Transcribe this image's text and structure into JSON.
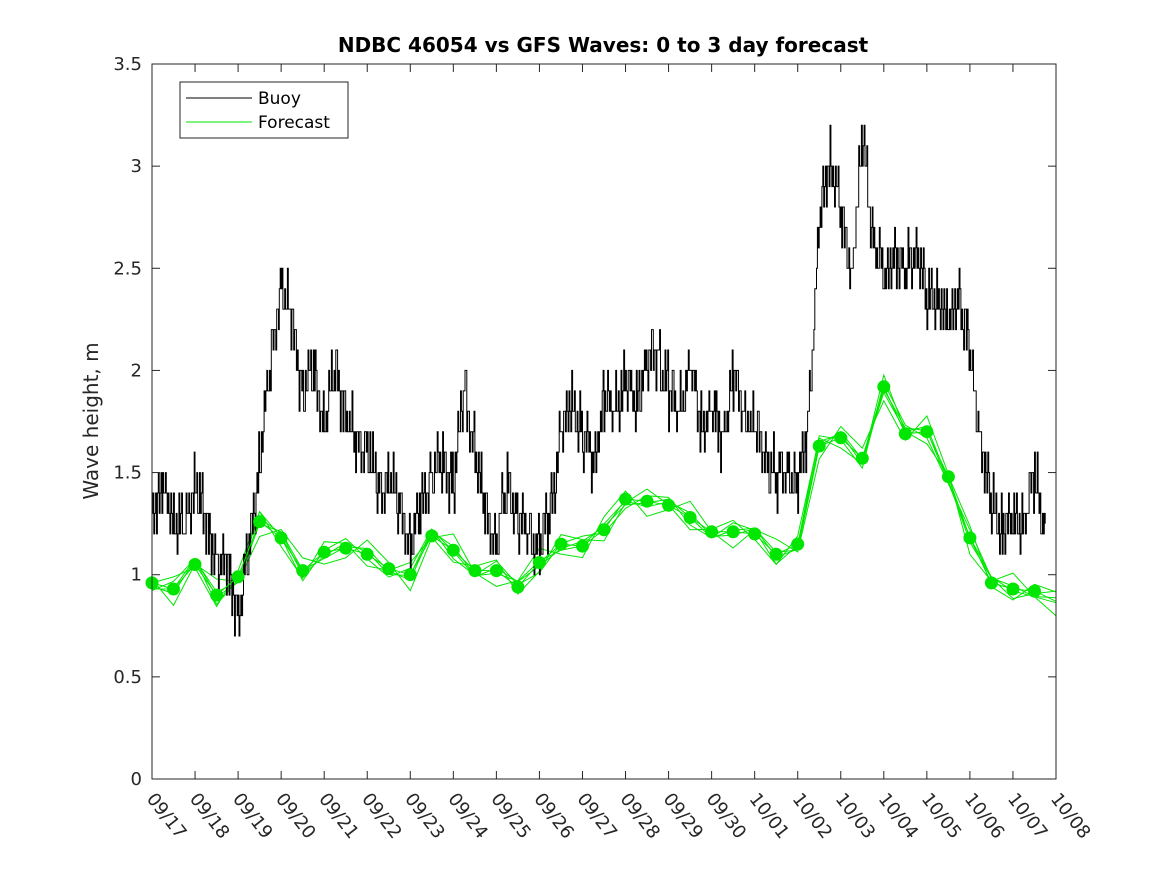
{
  "chart_data": {
    "type": "line",
    "title": "NDBC 46054 vs GFS Waves: 0 to 3 day forecast",
    "xlabel": "",
    "ylabel": "Wave height, m",
    "ylim": [
      0,
      3.5
    ],
    "yticks": [
      "0",
      "0.5",
      "1",
      "1.5",
      "2",
      "2.5",
      "3",
      "3.5"
    ],
    "ytick_values": [
      0,
      0.5,
      1,
      1.5,
      2,
      2.5,
      3,
      3.5
    ],
    "xlim_days": [
      0,
      21
    ],
    "xticks": [
      "09/17",
      "09/18",
      "09/19",
      "09/20",
      "09/21",
      "09/22",
      "09/23",
      "09/24",
      "09/25",
      "09/26",
      "09/27",
      "09/28",
      "09/29",
      "09/30",
      "10/01",
      "10/02",
      "10/03",
      "10/04",
      "10/05",
      "10/06",
      "10/07",
      "10/08"
    ],
    "legend": {
      "location": "top-left",
      "entries": [
        "Buoy",
        "Forecast"
      ]
    },
    "colors": {
      "buoy": "#000000",
      "forecast": "#00e600",
      "axis": "#262626"
    },
    "series": [
      {
        "name": "Buoy",
        "x_days": [
          0,
          0.25,
          0.5,
          0.75,
          1.0,
          1.25,
          1.5,
          1.75,
          2.0,
          2.25,
          2.5,
          2.75,
          3.0,
          3.25,
          3.5,
          3.75,
          4.0,
          4.25,
          4.5,
          4.75,
          5.0,
          5.25,
          5.5,
          5.75,
          6.0,
          6.25,
          6.5,
          6.75,
          7.0,
          7.25,
          7.5,
          7.75,
          8.0,
          8.25,
          8.5,
          8.75,
          9.0,
          9.25,
          9.5,
          9.75,
          10.0,
          10.25,
          10.5,
          10.75,
          11.0,
          11.25,
          11.5,
          11.75,
          12.0,
          12.25,
          12.5,
          12.75,
          13.0,
          13.25,
          13.5,
          13.75,
          14.0,
          14.25,
          14.5,
          14.75,
          15.0,
          15.25,
          15.5,
          15.75,
          16.0,
          16.25,
          16.5,
          16.75,
          17.0,
          17.25,
          17.5,
          17.75,
          18.0,
          18.25,
          18.5,
          18.75,
          19.0,
          19.25,
          19.5,
          19.75,
          20.0,
          20.25,
          20.5,
          20.75
        ],
        "values": [
          1.3,
          1.4,
          1.3,
          1.2,
          1.5,
          1.2,
          1.1,
          1.0,
          0.85,
          1.1,
          1.6,
          2.0,
          2.45,
          2.2,
          1.9,
          2.0,
          1.75,
          2.0,
          1.8,
          1.6,
          1.65,
          1.4,
          1.5,
          1.3,
          1.15,
          1.35,
          1.5,
          1.55,
          1.45,
          1.9,
          1.6,
          1.3,
          1.15,
          1.45,
          1.3,
          1.2,
          1.15,
          1.3,
          1.7,
          1.85,
          1.7,
          1.55,
          1.85,
          1.8,
          1.95,
          1.85,
          2.05,
          2.1,
          1.9,
          1.8,
          2.0,
          1.75,
          1.8,
          1.7,
          1.95,
          1.8,
          1.7,
          1.6,
          1.45,
          1.55,
          1.4,
          1.8,
          2.7,
          3.1,
          2.75,
          2.5,
          3.1,
          2.7,
          2.4,
          2.6,
          2.45,
          2.65,
          2.3,
          2.4,
          2.2,
          2.4,
          2.05,
          1.7,
          1.3,
          1.25,
          1.2,
          1.3,
          1.45,
          1.25
        ]
      },
      {
        "name": "Forecast",
        "x_days": [
          0,
          0.5,
          1.0,
          1.5,
          2.0,
          2.5,
          3.0,
          3.5,
          4.0,
          4.5,
          5.0,
          5.5,
          6.0,
          6.5,
          7.0,
          7.5,
          8.0,
          8.5,
          9.0,
          9.5,
          10.0,
          10.5,
          11.0,
          11.5,
          12.0,
          12.5,
          13.0,
          13.5,
          14.0,
          14.5,
          15.0,
          15.5,
          16.0,
          16.5,
          17.0,
          17.5,
          18.0,
          18.5,
          19.0,
          19.5,
          20.0,
          20.5,
          21.0
        ],
        "values": [
          0.96,
          0.93,
          1.05,
          0.9,
          0.99,
          1.26,
          1.18,
          1.02,
          1.11,
          1.13,
          1.1,
          1.03,
          1.0,
          1.19,
          1.12,
          1.02,
          1.02,
          0.94,
          1.06,
          1.15,
          1.14,
          1.22,
          1.37,
          1.36,
          1.34,
          1.28,
          1.21,
          1.21,
          1.2,
          1.1,
          1.15,
          1.63,
          1.67,
          1.57,
          1.92,
          1.69,
          1.7,
          1.48,
          1.18,
          0.96,
          0.93,
          0.92,
          0.87
        ],
        "markers_x_days": [
          0,
          0.5,
          1.0,
          1.5,
          2.0,
          2.5,
          3.0,
          3.5,
          4.0,
          4.5,
          5.0,
          5.5,
          6.0,
          6.5,
          7.0,
          7.5,
          8.0,
          8.5,
          9.0,
          9.5,
          10.0,
          10.5,
          11.0,
          11.5,
          12.0,
          12.5,
          13.0,
          13.5,
          14.0,
          14.5,
          15.0,
          15.5,
          16.0,
          16.5,
          17.0,
          17.5,
          18.0,
          18.5,
          19.0,
          19.5,
          20.0,
          20.5
        ],
        "markers": [
          0.96,
          0.93,
          1.05,
          0.9,
          0.99,
          1.26,
          1.18,
          1.02,
          1.11,
          1.13,
          1.1,
          1.03,
          1.0,
          1.19,
          1.12,
          1.02,
          1.02,
          0.94,
          1.06,
          1.15,
          1.14,
          1.22,
          1.37,
          1.36,
          1.34,
          1.28,
          1.21,
          1.21,
          1.2,
          1.1,
          1.15,
          1.63,
          1.67,
          1.57,
          1.92,
          1.69,
          1.7,
          1.48,
          1.18,
          0.96,
          0.93,
          0.92
        ]
      }
    ]
  }
}
